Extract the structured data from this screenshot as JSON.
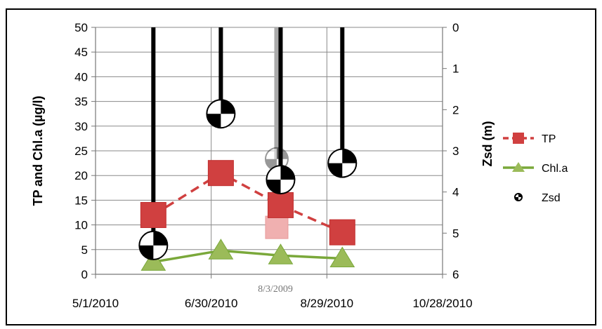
{
  "chart_data": {
    "type": "line",
    "title": "",
    "xlabel": "",
    "ylabel": "TP and Chl.a (µg/l)",
    "y2label": "Zsd (m)",
    "x_ticks": [
      "5/1/2010",
      "6/30/2010",
      "8/29/2010",
      "10/28/2010"
    ],
    "y_ticks": [
      "0",
      "5",
      "10",
      "15",
      "20",
      "25",
      "30",
      "35",
      "40",
      "45",
      "50"
    ],
    "y2_ticks": [
      "0",
      "1",
      "2",
      "3",
      "4",
      "5",
      "6"
    ],
    "ylim": [
      0,
      50
    ],
    "y2lim": [
      6,
      0
    ],
    "grid": true,
    "legend_position": "right",
    "series": [
      {
        "name": "TP",
        "color": "#d04040",
        "style": "dashed",
        "marker": "square",
        "x": [
          "2010-05-31",
          "2010-07-05",
          "2010-08-05",
          "2010-09-06"
        ],
        "y": [
          12,
          20.5,
          14,
          8.5
        ]
      },
      {
        "name": "Chl.a",
        "color": "#7aa83a",
        "style": "solid",
        "marker": "triangle",
        "x": [
          "2010-05-31",
          "2010-07-05",
          "2010-08-05",
          "2010-09-06"
        ],
        "y": [
          2.5,
          4.8,
          3.8,
          3.2
        ]
      },
      {
        "name": "Zsd",
        "axis": "secondary",
        "marker": "secchi-disk",
        "x": [
          "2010-05-31",
          "2010-07-05",
          "2010-08-05",
          "2010-09-06"
        ],
        "y": [
          5.3,
          2.1,
          3.7,
          3.3
        ]
      }
    ],
    "overlay": {
      "label": "8/3/2009",
      "x": "2010-08-03",
      "tp": 9.5,
      "zsd": 3.2
    }
  }
}
